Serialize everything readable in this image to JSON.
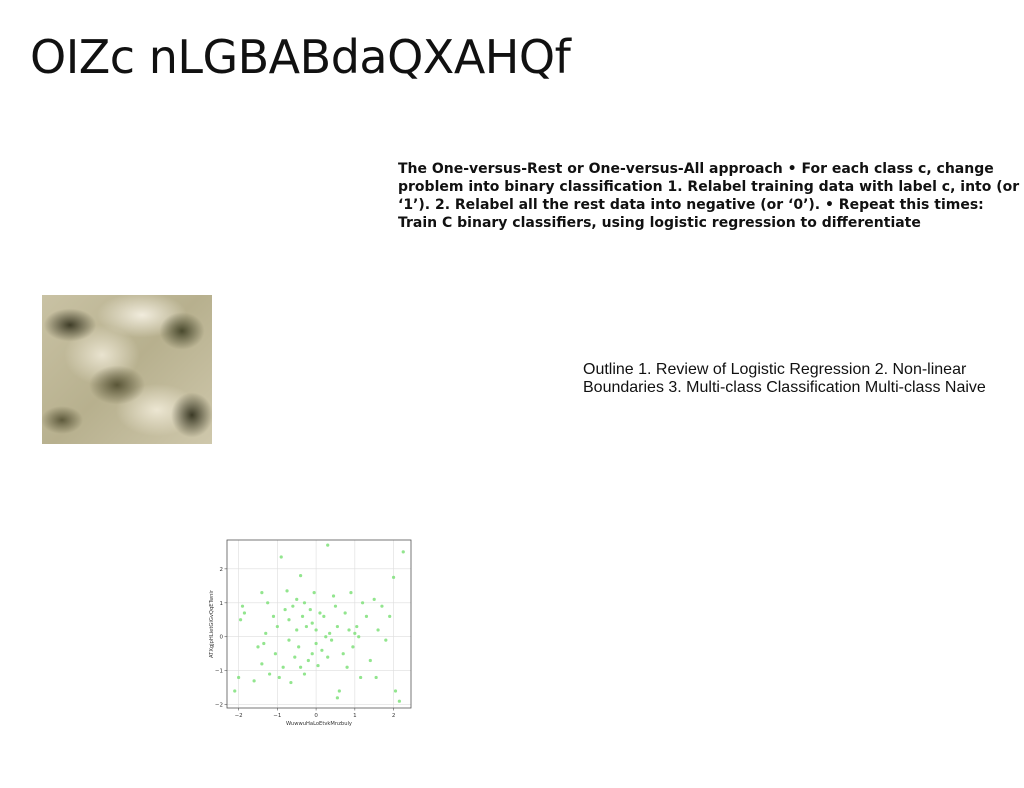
{
  "slide": {
    "title": "OIZc nLGBABdaQXAHQf",
    "text_block_1": "The One-versus-Rest or One-versus-All approach • For each class c, change problem into binary classification 1. Relabel training data with label c, into (or ‘1’). 2. Relabel all the rest data into negative (or ‘0’). • Repeat this times: Train C binary classifiers, using logistic regression to differentiate",
    "text_block_2": "Outline 1. Review of Logistic Regression 2. Non-linear Boundaries 3. Multi-class Classification Multi-class Naive"
  },
  "chart_data": {
    "type": "scatter",
    "xlabel": "WuwwuHaLoEtvkMnzbuly",
    "ylabel": "ATXgjpHLietGiGvQqETwnir",
    "xlim": [
      -2.3,
      2.45
    ],
    "ylim": [
      -2.1,
      2.85
    ],
    "xticks": [
      -2,
      -1,
      0,
      1,
      2
    ],
    "yticks": [
      -2,
      -1,
      0,
      1,
      2
    ],
    "grid": true,
    "color": "#7fe07a",
    "points": [
      [
        -2.1,
        -1.6
      ],
      [
        -2.0,
        -1.2
      ],
      [
        -1.95,
        0.5
      ],
      [
        -1.9,
        0.9
      ],
      [
        -1.85,
        0.7
      ],
      [
        -1.6,
        -1.3
      ],
      [
        -1.5,
        -0.3
      ],
      [
        -1.4,
        1.3
      ],
      [
        -1.4,
        -0.8
      ],
      [
        -1.35,
        -0.2
      ],
      [
        -1.3,
        0.1
      ],
      [
        -1.25,
        1.0
      ],
      [
        -1.2,
        -1.1
      ],
      [
        -1.1,
        0.6
      ],
      [
        -1.05,
        -0.5
      ],
      [
        -1.0,
        0.3
      ],
      [
        -0.95,
        -1.2
      ],
      [
        -0.9,
        2.35
      ],
      [
        -0.85,
        -0.9
      ],
      [
        -0.8,
        0.8
      ],
      [
        -0.75,
        1.35
      ],
      [
        -0.7,
        -0.1
      ],
      [
        -0.7,
        0.5
      ],
      [
        -0.65,
        -1.35
      ],
      [
        -0.6,
        0.9
      ],
      [
        -0.55,
        -0.6
      ],
      [
        -0.5,
        1.1
      ],
      [
        -0.5,
        0.2
      ],
      [
        -0.45,
        -0.3
      ],
      [
        -0.4,
        1.8
      ],
      [
        -0.4,
        -0.9
      ],
      [
        -0.35,
        0.6
      ],
      [
        -0.3,
        1.0
      ],
      [
        -0.3,
        -1.1
      ],
      [
        -0.25,
        0.3
      ],
      [
        -0.2,
        -0.7
      ],
      [
        -0.15,
        0.8
      ],
      [
        -0.1,
        0.4
      ],
      [
        -0.1,
        -0.5
      ],
      [
        -0.05,
        1.3
      ],
      [
        0.0,
        -0.2
      ],
      [
        0.0,
        0.2
      ],
      [
        0.05,
        -0.85
      ],
      [
        0.1,
        0.7
      ],
      [
        0.15,
        -0.4
      ],
      [
        0.2,
        0.6
      ],
      [
        0.25,
        0.0
      ],
      [
        0.3,
        2.7
      ],
      [
        0.3,
        -0.6
      ],
      [
        0.35,
        0.1
      ],
      [
        0.4,
        -0.1
      ],
      [
        0.45,
        1.2
      ],
      [
        0.5,
        0.9
      ],
      [
        0.55,
        -1.8
      ],
      [
        0.55,
        0.3
      ],
      [
        0.6,
        -1.6
      ],
      [
        0.7,
        -0.5
      ],
      [
        0.75,
        0.7
      ],
      [
        0.8,
        -0.9
      ],
      [
        0.85,
        0.2
      ],
      [
        0.9,
        1.3
      ],
      [
        0.95,
        -0.3
      ],
      [
        1.0,
        0.1
      ],
      [
        1.05,
        0.3
      ],
      [
        1.1,
        0.0
      ],
      [
        1.15,
        -1.2
      ],
      [
        1.2,
        1.0
      ],
      [
        1.3,
        0.6
      ],
      [
        1.4,
        -0.7
      ],
      [
        1.5,
        1.1
      ],
      [
        1.55,
        -1.2
      ],
      [
        1.6,
        0.2
      ],
      [
        1.7,
        0.9
      ],
      [
        1.8,
        -0.1
      ],
      [
        1.9,
        0.6
      ],
      [
        2.0,
        1.75
      ],
      [
        2.05,
        -1.6
      ],
      [
        2.15,
        -1.9
      ],
      [
        2.25,
        2.5
      ]
    ]
  }
}
